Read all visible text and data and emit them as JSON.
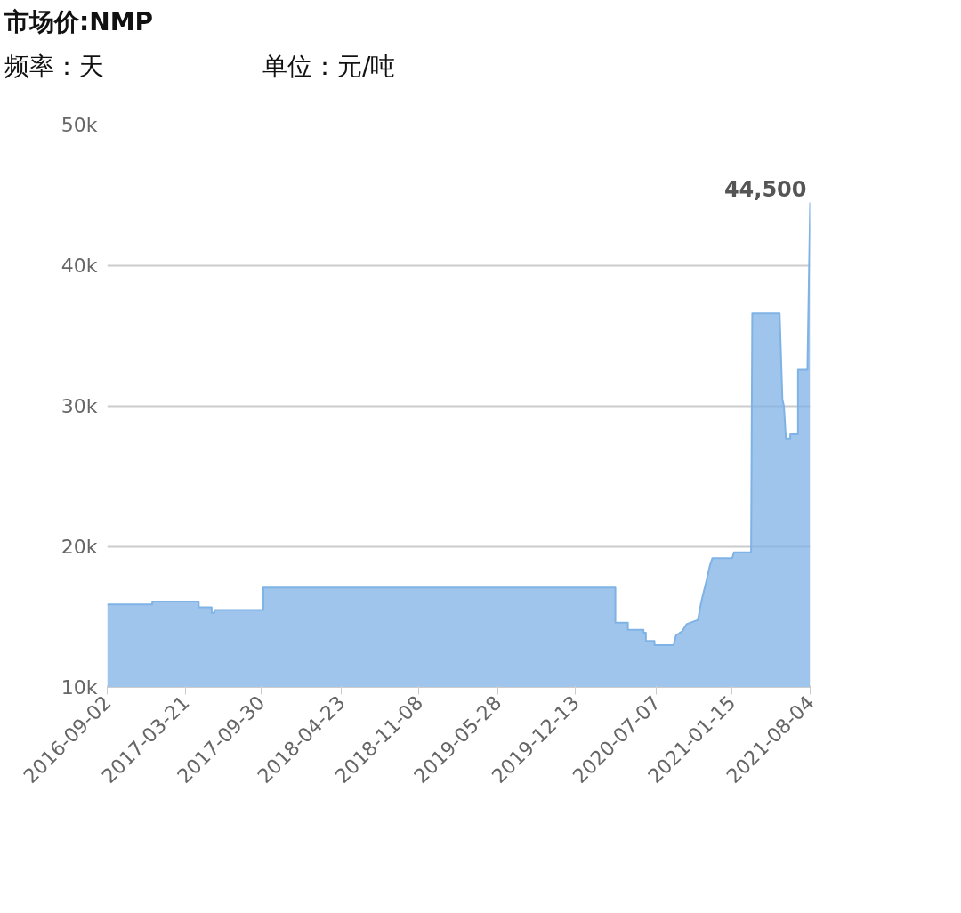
{
  "chart_data": {
    "type": "area",
    "title": "市场价:NMP",
    "subtitle": "频率：天",
    "annotations": [
      "单位：元/吨",
      {
        "text": "44,500",
        "x": "2021-08-04",
        "y": 44500
      }
    ],
    "x": [
      "2016-09-02",
      "2016-12-26",
      "2016-12-26",
      "2017-04-24",
      "2017-04-24",
      "2017-05-27",
      "2017-05-27",
      "2017-06-03",
      "2017-06-03",
      "2017-10-06",
      "2017-10-06",
      "2020-03-24",
      "2020-03-24",
      "2020-04-25",
      "2020-04-25",
      "2020-06-04",
      "2020-06-04",
      "2020-06-10",
      "2020-06-10",
      "2020-07-02",
      "2020-07-02",
      "2020-08-20",
      "2020-08-26",
      "2020-09-11",
      "2020-09-22",
      "2020-10-21",
      "2020-10-29",
      "2020-11-03",
      "2020-11-12",
      "2020-11-21",
      "2020-11-27",
      "2021-01-17",
      "2021-01-21",
      "2021-03-06",
      "2021-03-09",
      "2021-05-18",
      "2021-05-25",
      "2021-05-29",
      "2021-06-03",
      "2021-06-14",
      "2021-06-14",
      "2021-07-04",
      "2021-07-04",
      "2021-07-28",
      "2021-08-04"
    ],
    "series": [
      {
        "color": "#7fb2e5",
        "values": [
          15900,
          15900,
          16100,
          16100,
          15700,
          15700,
          15300,
          15300,
          15500,
          15500,
          17100,
          17100,
          14600,
          14600,
          14100,
          14100,
          13900,
          13900,
          13300,
          13300,
          13000,
          13000,
          13700,
          14000,
          14500,
          14800,
          16000,
          16600,
          17600,
          18700,
          19200,
          19200,
          19600,
          19600,
          36600,
          36600,
          30500,
          30000,
          27700,
          27700,
          28000,
          28000,
          32600,
          32600,
          44500
        ]
      }
    ],
    "xlim": [
      "2016-09-02",
      "2021-08-04"
    ],
    "xticks": [
      "2016-09-02",
      "2017-03-21",
      "2017-09-30",
      "2018-04-23",
      "2018-11-08",
      "2019-05-28",
      "2019-12-13",
      "2020-07-07",
      "2021-01-15",
      "2021-08-04"
    ],
    "ylim": [
      10000,
      50000
    ],
    "yticks": [
      {
        "value": 10000,
        "label": "10k"
      },
      {
        "value": 20000,
        "label": "20k"
      },
      {
        "value": 30000,
        "label": "30k"
      },
      {
        "value": 40000,
        "label": "40k"
      },
      {
        "value": 50000,
        "label": "50k"
      }
    ],
    "grid": "y"
  }
}
